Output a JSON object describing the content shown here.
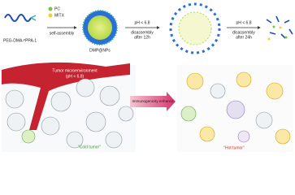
{
  "legend": {
    "items": [
      {
        "label": "PC"
      },
      {
        "label": "MITX"
      }
    ]
  },
  "polymer": {
    "label": "PEG-DMA-ᴾPPA-1"
  },
  "steps": [
    {
      "label": "self-assembly"
    },
    {
      "condition": "pH < 6.8",
      "label": "disassembly",
      "time": "after 12h"
    },
    {
      "condition": "pH < 6.8",
      "label": "disassembly",
      "time": "after 24h"
    }
  ],
  "nanoparticle": {
    "label": "DMP@NPs"
  },
  "tumor": {
    "title": "Tumor microenvironment",
    "condition": "(pH < 6.8)",
    "arrow": "Immunogenicity enhance",
    "left": "\"Cold tumor\"",
    "right": "\"Hot tumor\""
  }
}
